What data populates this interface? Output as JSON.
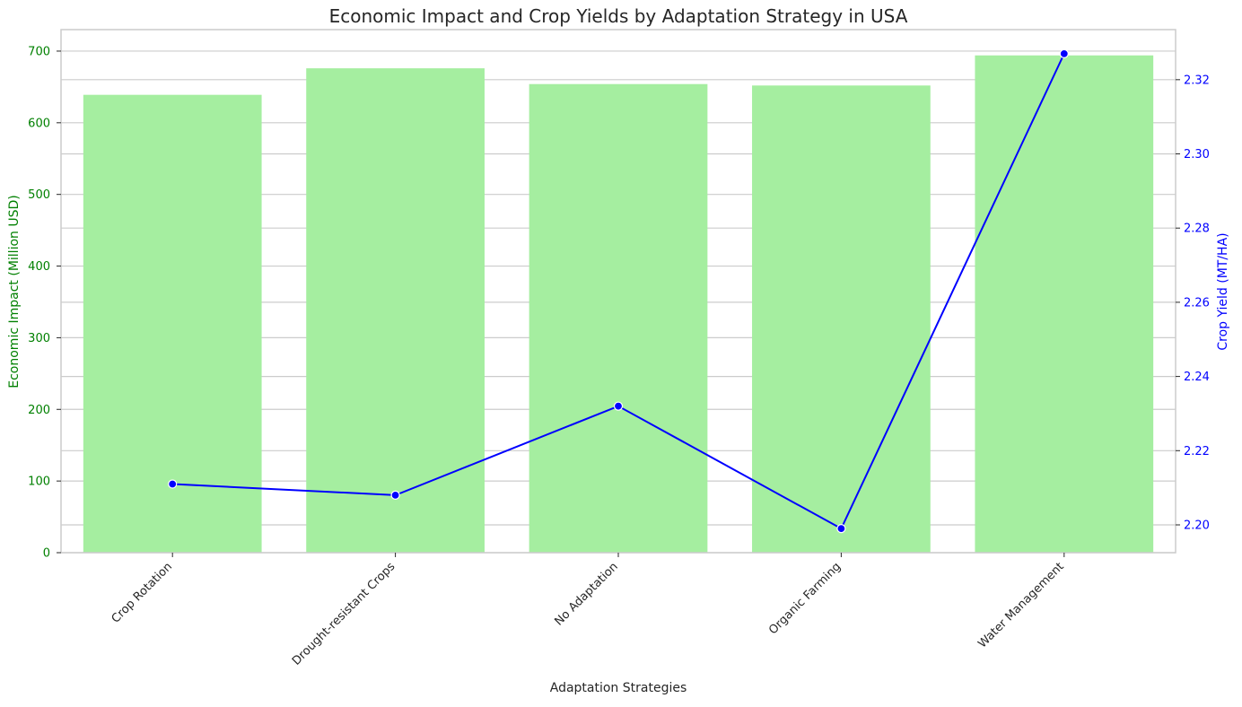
{
  "chart_data": {
    "type": "bar",
    "title": "Economic Impact and Crop Yields by Adaptation Strategy in USA",
    "xlabel": "Adaptation Strategies",
    "ylabel": "Economic Impact (Million USD)",
    "y2label": "Crop Yield (MT/HA)",
    "categories": [
      "Crop Rotation",
      "Drought-resistant Crops",
      "No Adaptation",
      "Organic Farming",
      "Water Management"
    ],
    "ylim": [
      0,
      730
    ],
    "y2lim": [
      2.1925,
      2.3335
    ],
    "yticks": [
      0,
      100,
      200,
      300,
      400,
      500,
      600,
      700
    ],
    "y2ticks": [
      2.2,
      2.22,
      2.24,
      2.26,
      2.28,
      2.3,
      2.32
    ],
    "grid": true,
    "series": [
      {
        "name": "Economic Impact (Million USD)",
        "type": "bar",
        "axis": "left",
        "color": "#a5eea0",
        "values": [
          639,
          676,
          654,
          652,
          694
        ]
      },
      {
        "name": "Crop Yield (MT/HA)",
        "type": "line",
        "axis": "right",
        "color": "#0000ff",
        "marker": "circle",
        "values": [
          2.211,
          2.208,
          2.232,
          2.199,
          2.327
        ]
      }
    ],
    "colors": {
      "left_axis": "#008000",
      "right_axis": "#0000ff",
      "grid": "#cccccc",
      "text": "#262626"
    }
  }
}
